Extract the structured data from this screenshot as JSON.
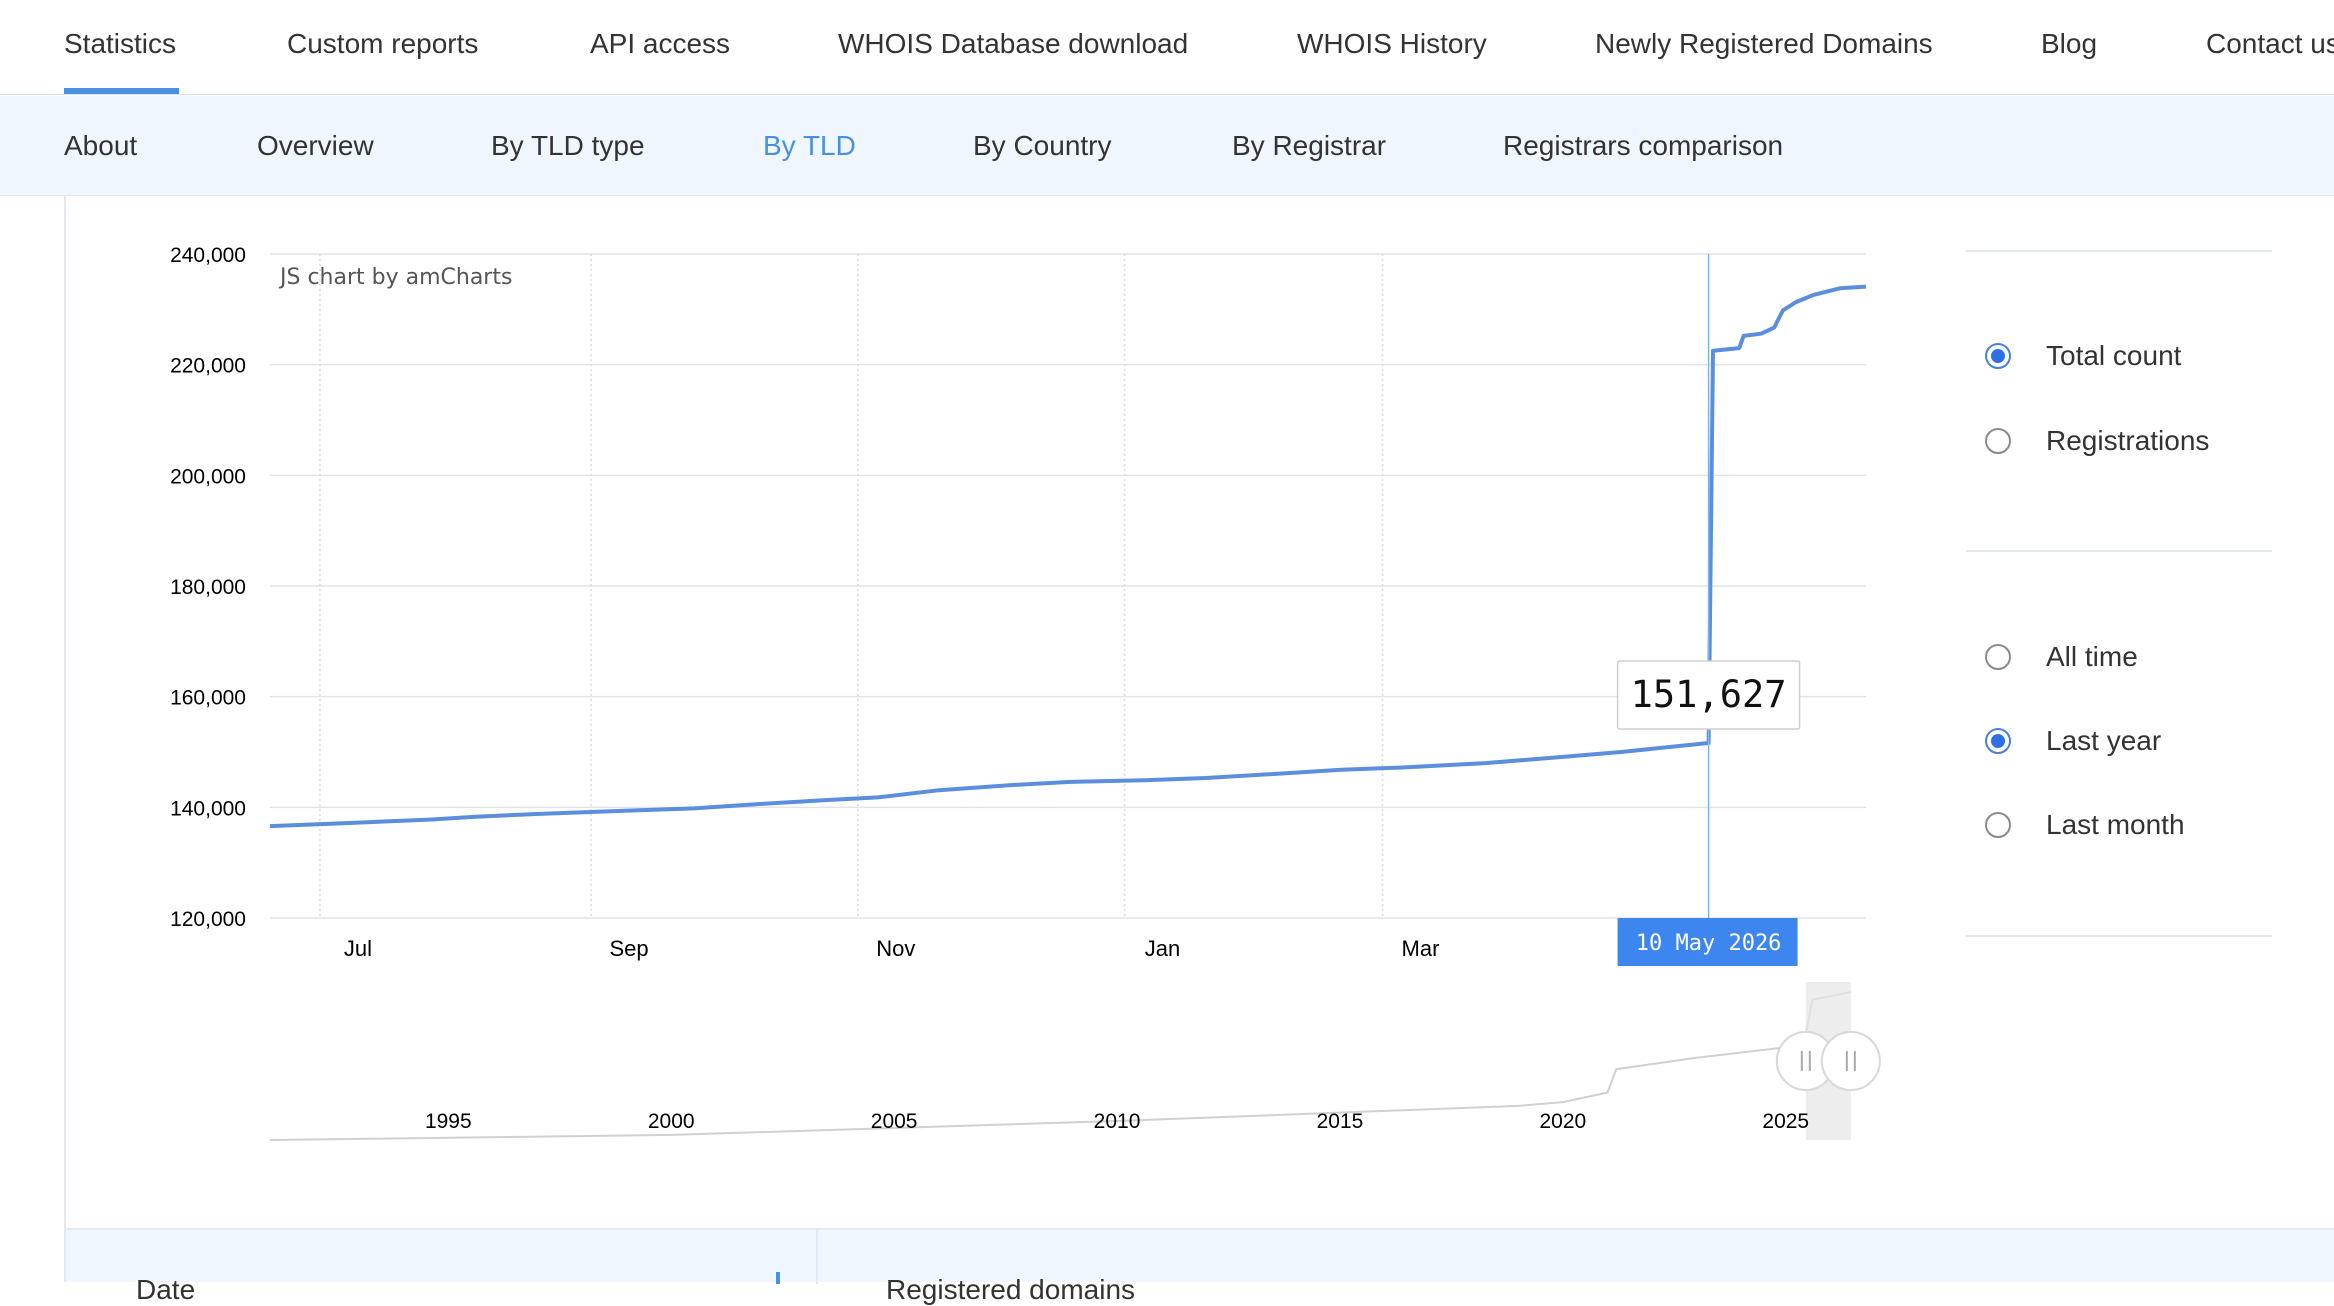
{
  "top_nav": {
    "items": [
      "Statistics",
      "Custom reports",
      "API access",
      "WHOIS Database download",
      "WHOIS History",
      "Newly Registered Domains",
      "Blog",
      "Contact us"
    ],
    "active_index": 0
  },
  "sub_nav": {
    "items": [
      "About",
      "Overview",
      "By TLD type",
      "By TLD",
      "By Country",
      "By Registrar",
      "Registrars comparison"
    ],
    "active_index": 3
  },
  "chart_data": {
    "type": "line",
    "credit": "JS chart by amCharts",
    "y_ticks": [
      "240,000",
      "220,000",
      "200,000",
      "180,000",
      "160,000",
      "140,000",
      "120,000"
    ],
    "ylim": [
      120000,
      240000
    ],
    "xlim": [
      "2025-06-15",
      "2026-06-15"
    ],
    "x_ticks": [
      {
        "label": "Jul",
        "date": "2025-07-01"
      },
      {
        "label": "Sep",
        "date": "2025-09-01"
      },
      {
        "label": "Nov",
        "date": "2025-11-01"
      },
      {
        "label": "Jan",
        "date": "2026-01-01"
      },
      {
        "label": "Mar",
        "date": "2026-03-01"
      }
    ],
    "series": [
      {
        "color": "#5b8fde",
        "points": [
          [
            "2025-06-15",
            136600
          ],
          [
            "2025-07-01",
            137100
          ],
          [
            "2025-07-22",
            137800
          ],
          [
            "2025-08-01",
            138300
          ],
          [
            "2025-08-15",
            138800
          ],
          [
            "2025-09-01",
            139300
          ],
          [
            "2025-09-20",
            139800
          ],
          [
            "2025-10-05",
            140600
          ],
          [
            "2025-10-20",
            141300
          ],
          [
            "2025-11-01",
            141800
          ],
          [
            "2025-11-15",
            143100
          ],
          [
            "2025-12-01",
            144000
          ],
          [
            "2025-12-15",
            144600
          ],
          [
            "2026-01-01",
            144900
          ],
          [
            "2026-01-15",
            145300
          ],
          [
            "2026-02-01",
            146100
          ],
          [
            "2026-02-15",
            146800
          ],
          [
            "2026-03-01",
            147200
          ],
          [
            "2026-03-20",
            148000
          ],
          [
            "2026-04-05",
            149000
          ],
          [
            "2026-04-20",
            150000
          ],
          [
            "2026-05-10",
            151627
          ],
          [
            "2026-05-11",
            222500
          ],
          [
            "2026-05-17",
            223000
          ],
          [
            "2026-05-18",
            225200
          ],
          [
            "2026-05-22",
            225600
          ],
          [
            "2026-05-25",
            226700
          ],
          [
            "2026-05-27",
            229800
          ],
          [
            "2026-05-30",
            231300
          ],
          [
            "2026-06-03",
            232600
          ],
          [
            "2026-06-09",
            233800
          ],
          [
            "2026-06-15",
            234100
          ]
        ]
      }
    ],
    "cursor": {
      "date": "2026-05-10",
      "value_label": "151,627",
      "date_label": "10 May 2026"
    },
    "navigator": {
      "labels": [
        "1995",
        "2000",
        "2005",
        "2010",
        "2015",
        "2020",
        "2025"
      ],
      "xlim": [
        1991,
        2026.8
      ],
      "label_years": [
        1995,
        2000,
        2005,
        2010,
        2015,
        2020,
        2025
      ],
      "selection": [
        2025.45,
        2026.46
      ],
      "values": [
        [
          1991,
          0
        ],
        [
          2000,
          8000
        ],
        [
          2010,
          30000
        ],
        [
          2019,
          54000
        ],
        [
          2020,
          60000
        ],
        [
          2021,
          75000
        ],
        [
          2021.2,
          112000
        ],
        [
          2023,
          130000
        ],
        [
          2025.4,
          150000
        ],
        [
          2025.6,
          222000
        ],
        [
          2026.46,
          234100
        ]
      ]
    }
  },
  "options": {
    "metric": [
      {
        "label": "Total count",
        "checked": true
      },
      {
        "label": "Registrations",
        "checked": false
      }
    ],
    "period": [
      {
        "label": "All time",
        "checked": false
      },
      {
        "label": "Last year",
        "checked": true
      },
      {
        "label": "Last month",
        "checked": false
      }
    ]
  },
  "table_header": {
    "col1": "Date",
    "col2": "Registered domains"
  },
  "colors": {
    "accent": "#4a90e2",
    "line": "#5b8fde",
    "cursor_label_bg": "#3d86f0"
  }
}
